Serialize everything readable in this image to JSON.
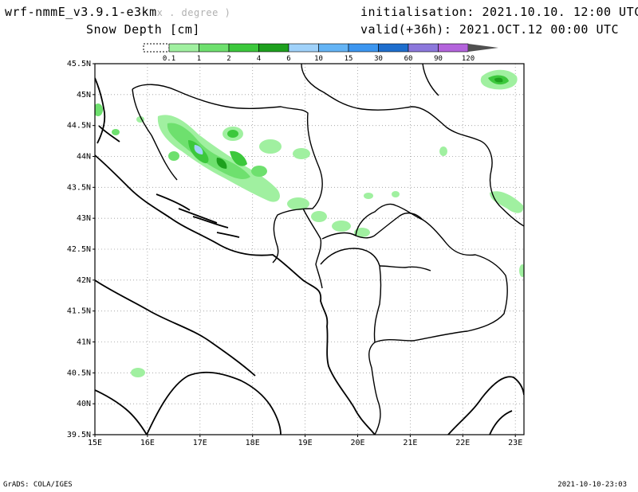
{
  "header": {
    "model": "wrf-nmmE_v3.9.1-e3km",
    "model_suffix": "x . degree )",
    "variable": "Snow Depth [cm]",
    "init": "initialisation: 2021.10.10.  12:00 UTC",
    "valid": "valid(+36h): 2021.OCT.12 00:00 UTC"
  },
  "colorbar": {
    "labels": [
      "0.1",
      "1",
      "2",
      "4",
      "6",
      "10",
      "15",
      "30",
      "60",
      "90",
      "120"
    ],
    "colors": [
      "#ffffff",
      "#a0f0a0",
      "#6ee06e",
      "#3cc83c",
      "#1ea01e",
      "#a0d2fa",
      "#64b4f5",
      "#3c96f0",
      "#1e6ecd",
      "#8c78dc",
      "#b464dc",
      "#505050"
    ]
  },
  "map": {
    "lat_labels": [
      "45.5N",
      "45N",
      "44.5N",
      "44N",
      "43.5N",
      "43N",
      "42.5N",
      "42N",
      "41.5N",
      "41N",
      "40.5N",
      "40N",
      "39.5N"
    ],
    "lon_labels": [
      "15E",
      "16E",
      "17E",
      "18E",
      "19E",
      "20E",
      "21E",
      "22E",
      "23E"
    ]
  },
  "footer": {
    "left": "GrADS: COLA/IGES",
    "right": "2021-10-10-23:03"
  }
}
